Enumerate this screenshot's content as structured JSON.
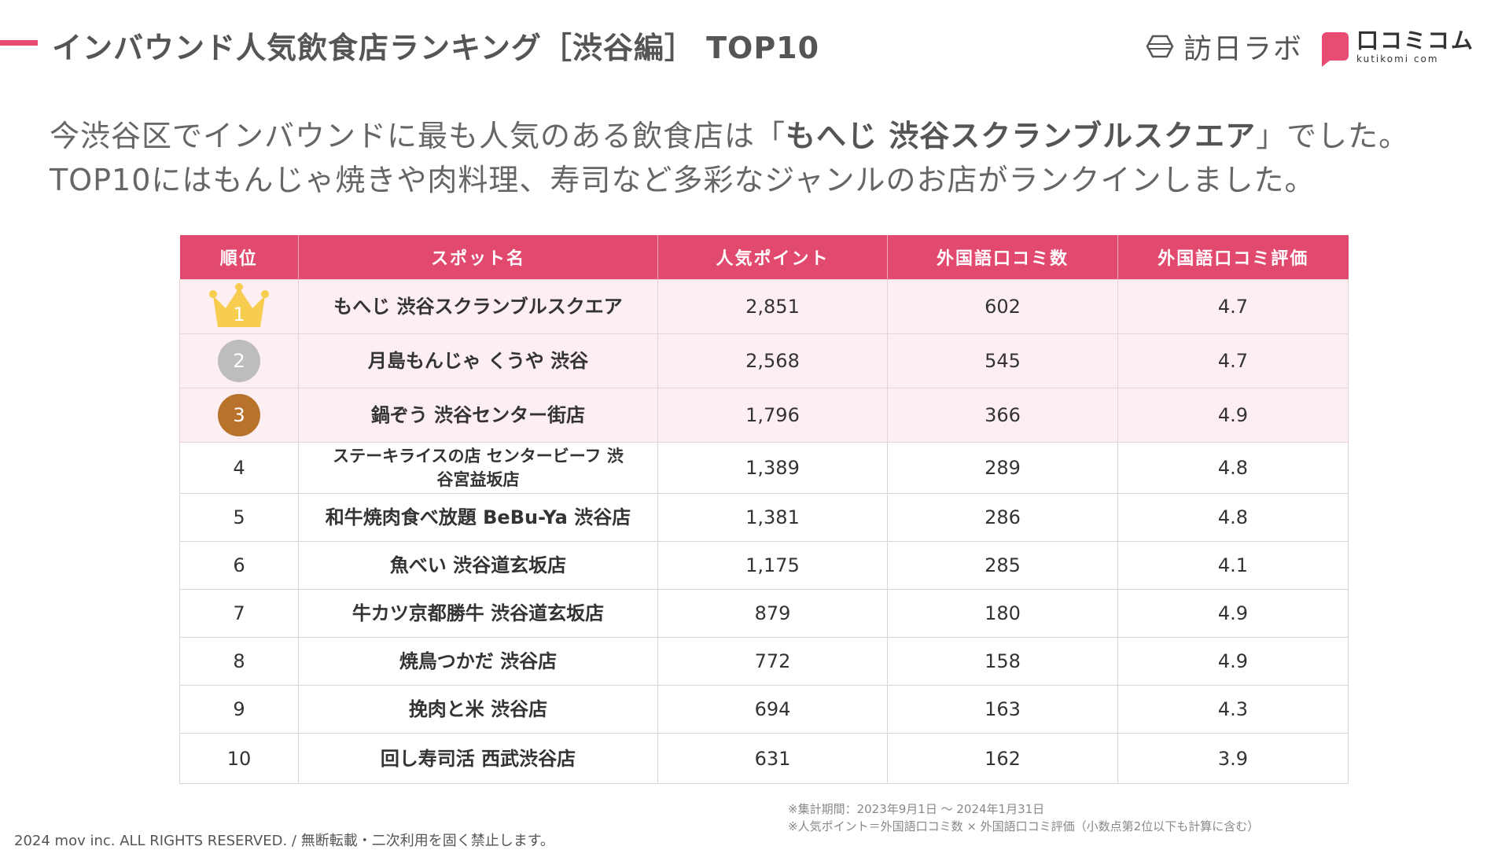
{
  "header": {
    "title": "インバウンド人気飲食店ランキング［渋谷編］ TOP10",
    "logo_left": "訪日ラボ",
    "logo_right_main": "口コミコム",
    "logo_right_sub": "kutikomi com",
    "accent_color": "#e84c72"
  },
  "lead": {
    "line1_pre": "今渋谷区でインバウンドに最も人気のある飲食店は「",
    "line1_bold": "もへじ 渋谷スクランブルスクエア",
    "line1_post": "」でした。",
    "line2": "TOP10にはもんじゃ焼きや肉料理、寿司など多彩なジャンルのお店がランクインしました。"
  },
  "table": {
    "headers": [
      "順位",
      "スポット名",
      "人気ポイント",
      "外国語口コミ数",
      "外国語口コミ評価"
    ],
    "rows": [
      {
        "rank": "1",
        "name": "もへじ 渋谷スクランブルスクエア",
        "points": "2,851",
        "reviews": "602",
        "rating": "4.7"
      },
      {
        "rank": "2",
        "name": "月島もんじゃ くうや 渋谷",
        "points": "2,568",
        "reviews": "545",
        "rating": "4.7"
      },
      {
        "rank": "3",
        "name": "鍋ぞう 渋谷センター街店",
        "points": "1,796",
        "reviews": "366",
        "rating": "4.9"
      },
      {
        "rank": "4",
        "name": "ステーキライスの店 センタービーフ 渋谷宮益坂店",
        "points": "1,389",
        "reviews": "289",
        "rating": "4.8"
      },
      {
        "rank": "5",
        "name": "和牛焼肉食べ放題 BeBu-Ya 渋谷店",
        "points": "1,381",
        "reviews": "286",
        "rating": "4.8"
      },
      {
        "rank": "6",
        "name": "魚べい 渋谷道玄坂店",
        "points": "1,175",
        "reviews": "285",
        "rating": "4.1"
      },
      {
        "rank": "7",
        "name": "牛カツ京都勝牛 渋谷道玄坂店",
        "points": "879",
        "reviews": "180",
        "rating": "4.9"
      },
      {
        "rank": "8",
        "name": "焼鳥つかだ 渋谷店",
        "points": "772",
        "reviews": "158",
        "rating": "4.9"
      },
      {
        "rank": "9",
        "name": "挽肉と米 渋谷店",
        "points": "694",
        "reviews": "163",
        "rating": "4.3"
      },
      {
        "rank": "10",
        "name": "回し寿司活 西武渋谷店",
        "points": "631",
        "reviews": "162",
        "rating": "3.9"
      }
    ]
  },
  "notes": {
    "period": "※集計期間：2023年9月1日 〜 2024年1月31日",
    "formula": "※人気ポイント＝外国語口コミ数 × 外国語口コミ評価（小数点第2位以下も計算に含む）"
  },
  "footer": {
    "copyright": "2024 mov inc. ALL RIGHTS RESERVED. / 無断転載・二次利用を固く禁止します。"
  }
}
